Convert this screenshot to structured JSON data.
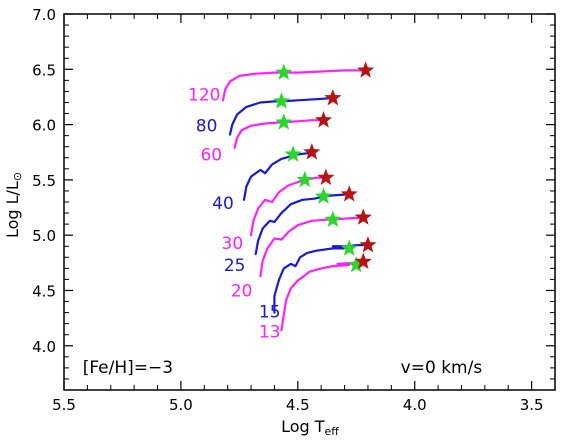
{
  "chart_data": {
    "type": "line",
    "xlabel": "Log T",
    "xlabel_sub": "eff",
    "ylabel": "Log L/L",
    "ylabel_sub": "⊙",
    "xlim": [
      5.5,
      3.4
    ],
    "ylim": [
      3.6,
      7.0
    ],
    "x_ticks": [
      "5.5",
      "5.0",
      "4.5",
      "4.0",
      "3.5"
    ],
    "y_ticks": [
      "4.0",
      "4.5",
      "5.0",
      "5.5",
      "6.0",
      "6.5",
      "7.0"
    ],
    "annotations": [
      {
        "text": "[Fe/H]=−3",
        "x": 5.42,
        "y": 3.81
      },
      {
        "text": "v=0 km/s",
        "x": 4.06,
        "y": 3.81
      }
    ],
    "series": [
      {
        "name": "120",
        "color": "#ff22ff",
        "label_at": [
          4.9,
          6.27
        ],
        "points": [
          [
            4.82,
            6.22
          ],
          [
            4.81,
            6.32
          ],
          [
            4.79,
            6.39
          ],
          [
            4.75,
            6.44
          ],
          [
            4.68,
            6.46
          ],
          [
            4.6,
            6.47
          ],
          [
            4.56,
            6.47
          ],
          [
            4.5,
            6.47
          ],
          [
            4.4,
            6.48
          ],
          [
            4.3,
            6.49
          ],
          [
            4.21,
            6.49
          ]
        ],
        "mid_star": [
          4.56,
          6.47
        ],
        "end_star": [
          4.21,
          6.49
        ]
      },
      {
        "name": "80",
        "color": "#1a1ad0",
        "label_at": [
          4.89,
          5.99
        ],
        "points": [
          [
            4.79,
            5.91
          ],
          [
            4.78,
            6.0
          ],
          [
            4.76,
            6.09
          ],
          [
            4.72,
            6.16
          ],
          [
            4.66,
            6.2
          ],
          [
            4.6,
            6.21
          ],
          [
            4.57,
            6.21
          ],
          [
            4.5,
            6.22
          ],
          [
            4.42,
            6.23
          ],
          [
            4.35,
            6.24
          ]
        ],
        "mid_star": [
          4.57,
          6.21
        ],
        "end_star": [
          4.35,
          6.24
        ]
      },
      {
        "name": "60",
        "color": "#ff22ff",
        "label_at": [
          4.87,
          5.73
        ],
        "points": [
          [
            4.77,
            5.79
          ],
          [
            4.76,
            5.88
          ],
          [
            4.74,
            5.95
          ],
          [
            4.7,
            5.99
          ],
          [
            4.64,
            6.01
          ],
          [
            4.57,
            6.02
          ],
          [
            4.5,
            6.03
          ],
          [
            4.44,
            6.04
          ],
          [
            4.39,
            6.04
          ]
        ],
        "mid_star": [
          4.56,
          6.02
        ],
        "end_star": [
          4.39,
          6.04
        ]
      },
      {
        "name": "40",
        "color": "#1a1ad0",
        "label_at": [
          4.82,
          5.29
        ],
        "points": [
          [
            4.73,
            5.32
          ],
          [
            4.72,
            5.44
          ],
          [
            4.7,
            5.53
          ],
          [
            4.66,
            5.59
          ],
          [
            4.64,
            5.56
          ],
          [
            4.61,
            5.64
          ],
          [
            4.57,
            5.69
          ],
          [
            4.52,
            5.72
          ],
          [
            4.5,
            5.73
          ],
          [
            4.46,
            5.74
          ],
          [
            4.44,
            5.75
          ]
        ],
        "mid_star": [
          4.52,
          5.73
        ],
        "end_star": [
          4.44,
          5.75
        ]
      },
      {
        "name": "30",
        "color": "#ff22ff",
        "label_at": [
          4.78,
          4.93
        ],
        "points": [
          [
            4.7,
            5.0
          ],
          [
            4.69,
            5.13
          ],
          [
            4.67,
            5.24
          ],
          [
            4.64,
            5.32
          ],
          [
            4.61,
            5.3
          ],
          [
            4.58,
            5.39
          ],
          [
            4.54,
            5.45
          ],
          [
            4.5,
            5.48
          ],
          [
            4.47,
            5.5
          ],
          [
            4.42,
            5.52
          ],
          [
            4.38,
            5.52
          ]
        ],
        "mid_star": [
          4.47,
          5.5
        ],
        "end_star": [
          4.38,
          5.52
        ]
      },
      {
        "name": "25",
        "color": "#1a1ad0",
        "label_at": [
          4.77,
          4.73
        ],
        "points": [
          [
            4.68,
            4.83
          ],
          [
            4.67,
            4.95
          ],
          [
            4.65,
            5.06
          ],
          [
            4.62,
            5.13
          ],
          [
            4.6,
            5.12
          ],
          [
            4.57,
            5.2
          ],
          [
            4.53,
            5.28
          ],
          [
            4.48,
            5.32
          ],
          [
            4.43,
            5.33
          ],
          [
            4.39,
            5.35
          ],
          [
            4.35,
            5.36
          ],
          [
            4.28,
            5.37
          ]
        ],
        "mid_star": [
          4.39,
          5.35
        ],
        "end_star": [
          4.28,
          5.37
        ]
      },
      {
        "name": "20",
        "color": "#ff22ff",
        "label_at": [
          4.74,
          4.5
        ],
        "points": [
          [
            4.66,
            4.63
          ],
          [
            4.65,
            4.77
          ],
          [
            4.63,
            4.88
          ],
          [
            4.6,
            4.97
          ],
          [
            4.57,
            4.96
          ],
          [
            4.54,
            5.03
          ],
          [
            4.5,
            5.09
          ],
          [
            4.44,
            5.13
          ],
          [
            4.38,
            5.14
          ],
          [
            4.35,
            5.14
          ],
          [
            4.3,
            5.15
          ],
          [
            4.22,
            5.16
          ]
        ],
        "mid_star": [
          4.35,
          5.14
        ],
        "end_star": [
          4.22,
          5.16
        ]
      },
      {
        "name": "15",
        "color": "#1a1ad0",
        "label_at": [
          4.62,
          4.31
        ],
        "points": [
          [
            4.6,
            4.3
          ],
          [
            4.6,
            4.45
          ],
          [
            4.58,
            4.6
          ],
          [
            4.56,
            4.7
          ],
          [
            4.53,
            4.74
          ],
          [
            4.51,
            4.72
          ],
          [
            4.49,
            4.8
          ],
          [
            4.46,
            4.84
          ],
          [
            4.42,
            4.86
          ],
          [
            4.35,
            4.88
          ],
          [
            4.3,
            4.88
          ],
          [
            4.35,
            4.9
          ],
          [
            4.28,
            4.9
          ],
          [
            4.25,
            4.91
          ],
          [
            4.2,
            4.91
          ]
        ],
        "mid_star": [
          4.28,
          4.88
        ],
        "end_star": [
          4.2,
          4.91
        ]
      },
      {
        "name": "13",
        "color": "#ff22ff",
        "label_at": [
          4.62,
          4.13
        ],
        "points": [
          [
            4.57,
            4.14
          ],
          [
            4.56,
            4.28
          ],
          [
            4.55,
            4.41
          ],
          [
            4.53,
            4.52
          ],
          [
            4.5,
            4.59
          ],
          [
            4.48,
            4.62
          ],
          [
            4.45,
            4.67
          ],
          [
            4.4,
            4.7
          ],
          [
            4.35,
            4.72
          ],
          [
            4.28,
            4.73
          ],
          [
            4.33,
            4.74
          ],
          [
            4.26,
            4.75
          ],
          [
            4.22,
            4.75
          ],
          [
            4.21,
            4.75
          ]
        ],
        "mid_star": [
          4.25,
          4.73
        ],
        "end_star": [
          4.22,
          4.76
        ]
      }
    ],
    "star_colors": {
      "mid": "#2bd62b",
      "end": "#b51212"
    }
  }
}
